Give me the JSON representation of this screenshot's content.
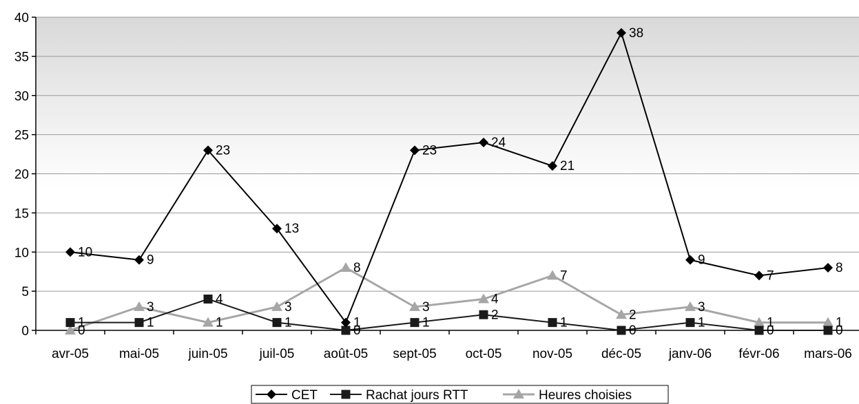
{
  "chart_data": {
    "type": "line",
    "categories": [
      "avr-05",
      "mai-05",
      "juin-05",
      "juil-05",
      "août-05",
      "sept-05",
      "oct-05",
      "nov-05",
      "déc-05",
      "janv-06",
      "févr-06",
      "mars-06"
    ],
    "series": [
      {
        "name": "CET",
        "values": [
          10,
          9,
          23,
          13,
          1,
          23,
          24,
          21,
          38,
          9,
          7,
          8
        ],
        "color": "#000000",
        "marker": "diamond"
      },
      {
        "name": "Rachat jours RTT",
        "values": [
          1,
          1,
          4,
          1,
          0,
          1,
          2,
          1,
          0,
          1,
          0,
          0
        ],
        "color": "#1a1a1a",
        "marker": "square"
      },
      {
        "name": "Heures choisies",
        "values": [
          0,
          3,
          1,
          3,
          8,
          3,
          4,
          7,
          2,
          3,
          1,
          1
        ],
        "color": "#a6a6a6",
        "marker": "triangle"
      }
    ],
    "ylim": [
      0,
      40
    ],
    "yticks": [
      0,
      5,
      10,
      15,
      20,
      25,
      30,
      35,
      40
    ],
    "grid": true,
    "legend_position": "bottom",
    "data_labels": true
  }
}
